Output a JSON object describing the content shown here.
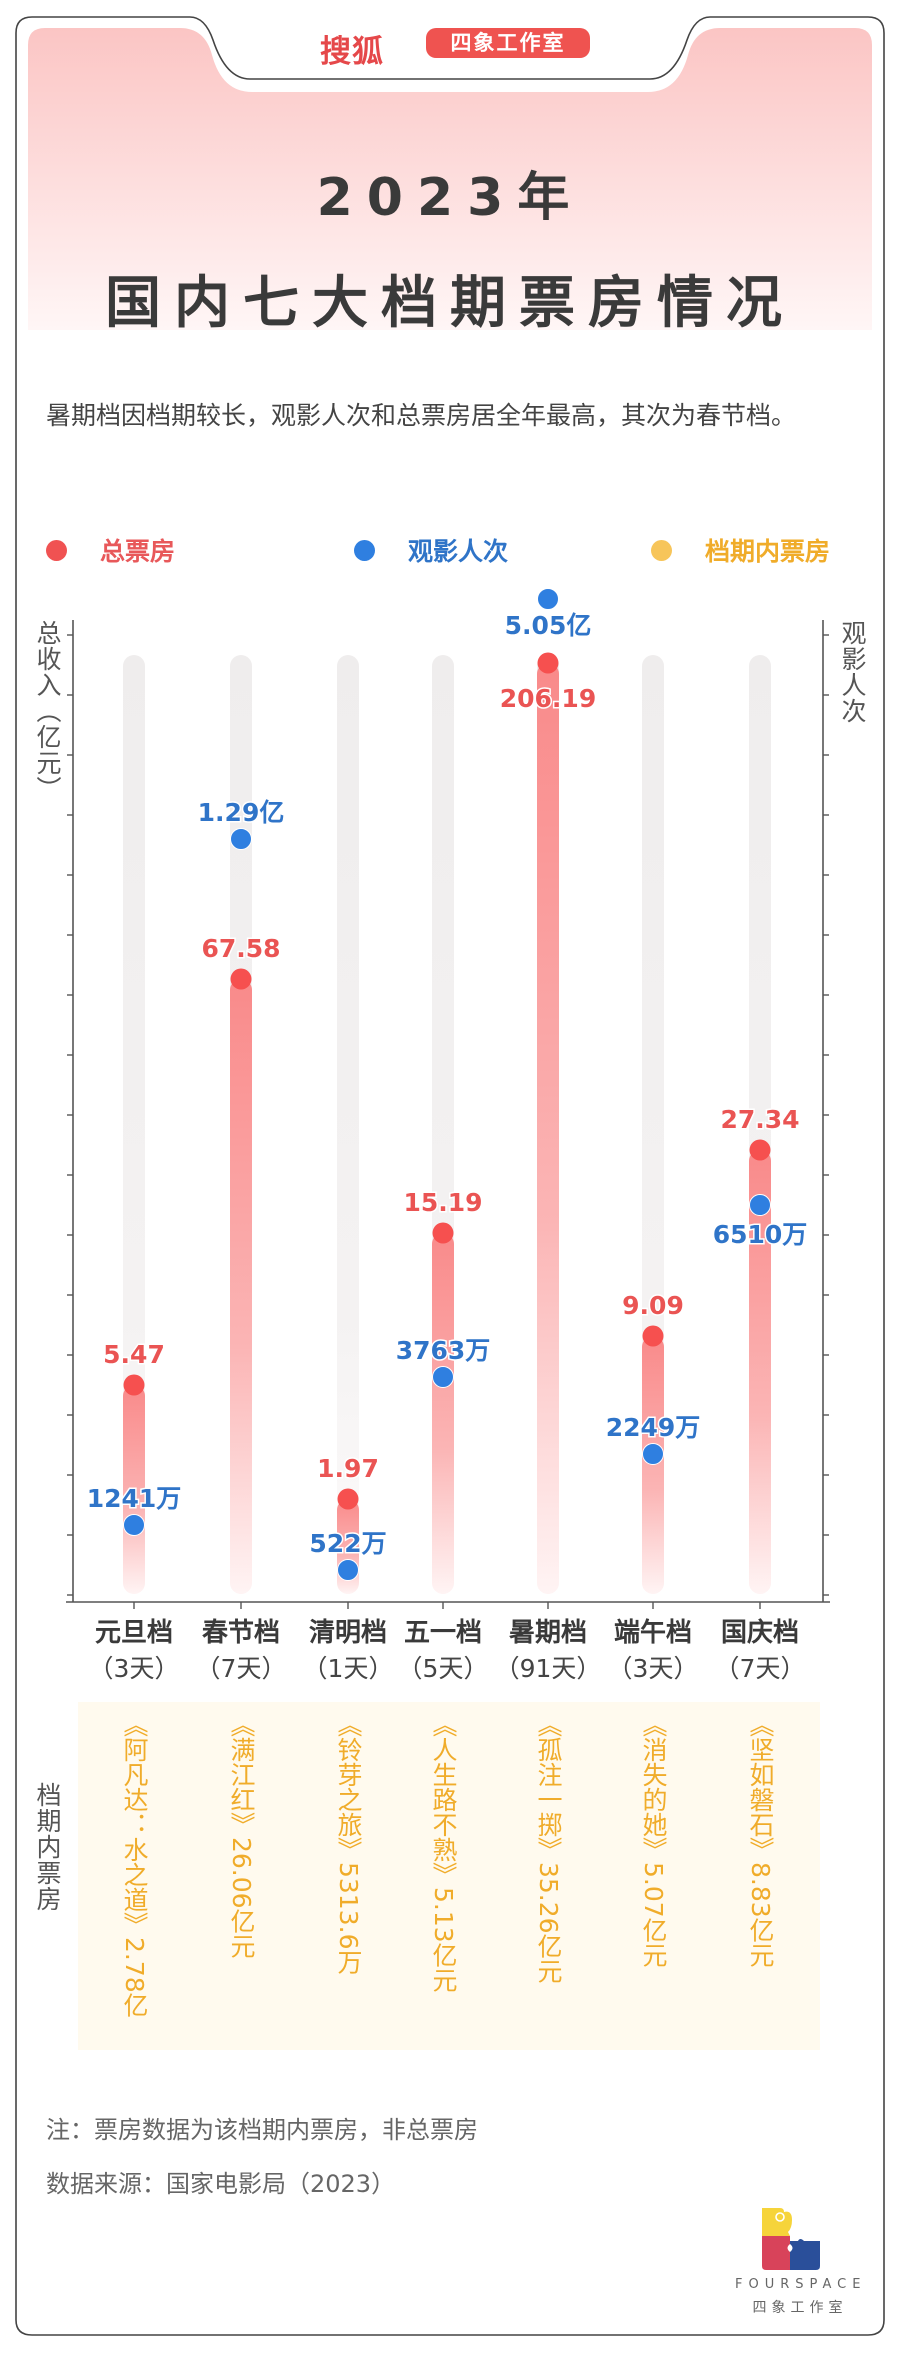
{
  "header": {
    "brand": "搜狐",
    "studio_badge": "四象工作室"
  },
  "title": {
    "year": "2023年",
    "main": "国内七大档期票房情况"
  },
  "intro": "暑期档因档期较长，观影人次和总票房居全年最高，其次为春节档。",
  "legend": [
    {
      "label": "总票房",
      "color": "#f05252"
    },
    {
      "label": "观影人次",
      "color": "#2f7fe0"
    },
    {
      "label": "档期内票房",
      "color": "#f7c55a"
    }
  ],
  "colors": {
    "total_box_office": "#f05252",
    "audience": "#2f7fe0",
    "period_box_office": "#f0ac2a",
    "track": "#efeded"
  },
  "chart_data": {
    "type": "dot-bar",
    "title": "国内七大档期票房情况",
    "ylabel_left": "总收入（亿元）",
    "ylabel_right": "观影人次",
    "row_label": "档期内票房",
    "categories": [
      "元旦档",
      "春节档",
      "清明档",
      "五一档",
      "暑期档",
      "端午档",
      "国庆档"
    ],
    "durations": [
      "（3天）",
      "（7天）",
      "（1天）",
      "（5天）",
      "（91天）",
      "（3天）",
      "（7天）"
    ],
    "series": [
      {
        "name": "总票房",
        "unit": "亿元",
        "values": [
          5.47,
          67.58,
          1.97,
          15.19,
          206.19,
          9.09,
          27.34
        ],
        "labels": [
          "5.47",
          "67.58",
          "1.97",
          "15.19",
          "206.19",
          "9.09",
          "27.34"
        ]
      },
      {
        "name": "观影人次",
        "unit": "万",
        "values": [
          1241,
          12900,
          522,
          3763,
          50500,
          2249,
          6510
        ],
        "labels": [
          "1241万",
          "1.29亿",
          "522万",
          "3763万",
          "5.05亿",
          "2249万",
          "6510万"
        ]
      }
    ],
    "period_top_films": [
      "《阿凡达：水之道》2.78亿",
      "《满江红》26.06亿元",
      "《铃芽之旅》5313.6万",
      "《人生路不熟》5.13亿元",
      "《孤注一掷》35.26亿元",
      "《消失的她》5.07亿元",
      "《坚如磐石》8.83亿元"
    ],
    "grid": false,
    "legend_position": "top"
  },
  "notes": {
    "note": "注：票房数据为该档期内票房，非总票房",
    "source": "数据来源：国家电影局（2023）"
  },
  "logo": {
    "en": "FOURSPACE",
    "cn": "四象工作室"
  }
}
